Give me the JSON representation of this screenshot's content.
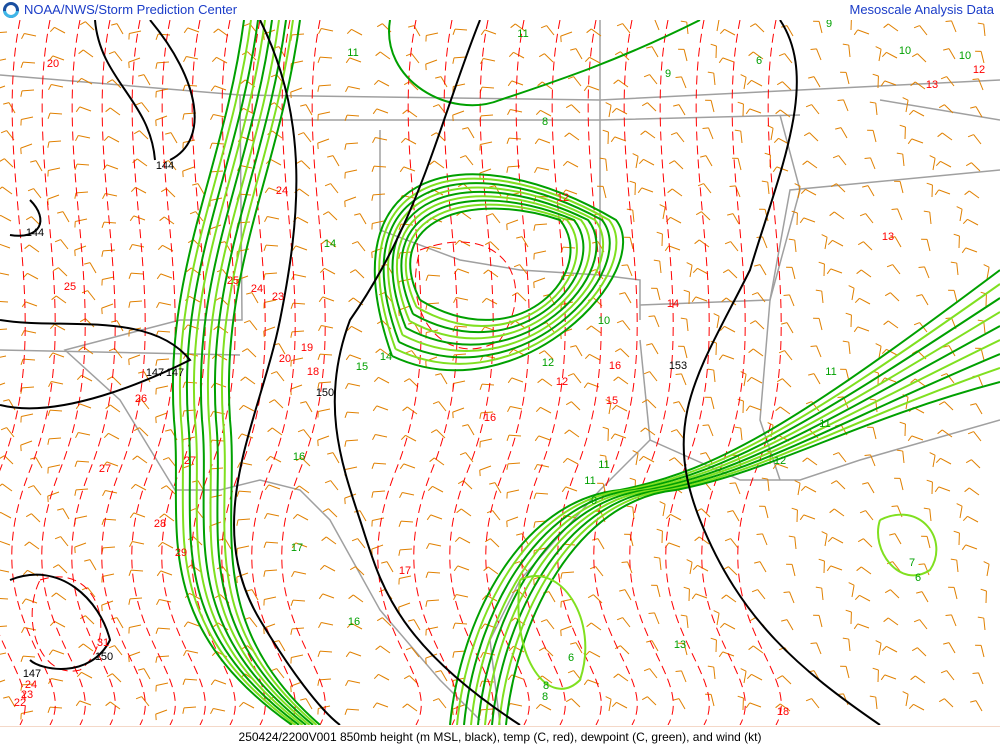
{
  "header": {
    "left_title": "NOAA/NWS/Storm Prediction Center",
    "right_title": "Mesoscale Analysis Data",
    "logo_icon": "noaa-logo-icon"
  },
  "footer": {
    "caption": "250424/2200V001 850mb height (m MSL, black), temp (C, red), dewpoint (C, green), and wind (kt)"
  },
  "colors": {
    "height": "#000000",
    "temp": "#ff0000",
    "dewpoint_dark": "#00a000",
    "dewpoint_light": "#80e020",
    "wind": "#e08000",
    "borders": "#a0a0a0"
  },
  "labels": {
    "height": [
      "144",
      "144",
      "147",
      "147",
      "150",
      "153",
      "147",
      "150"
    ],
    "temp": [
      "20",
      "24",
      "25",
      "25",
      "24",
      "23",
      "20",
      "19",
      "18",
      "26",
      "27",
      "27",
      "28",
      "29",
      "31",
      "24",
      "23",
      "22",
      "17",
      "16",
      "15",
      "16",
      "14",
      "12",
      "13",
      "12",
      "18",
      "13",
      "12"
    ],
    "dewpoint": [
      "11",
      "11",
      "9",
      "8",
      "6",
      "10",
      "11",
      "11",
      "14",
      "15",
      "14",
      "12",
      "16",
      "17",
      "16",
      "11",
      "9",
      "10",
      "13",
      "12",
      "11",
      "7",
      "6",
      "8",
      "6",
      "9",
      "10",
      "8"
    ]
  }
}
